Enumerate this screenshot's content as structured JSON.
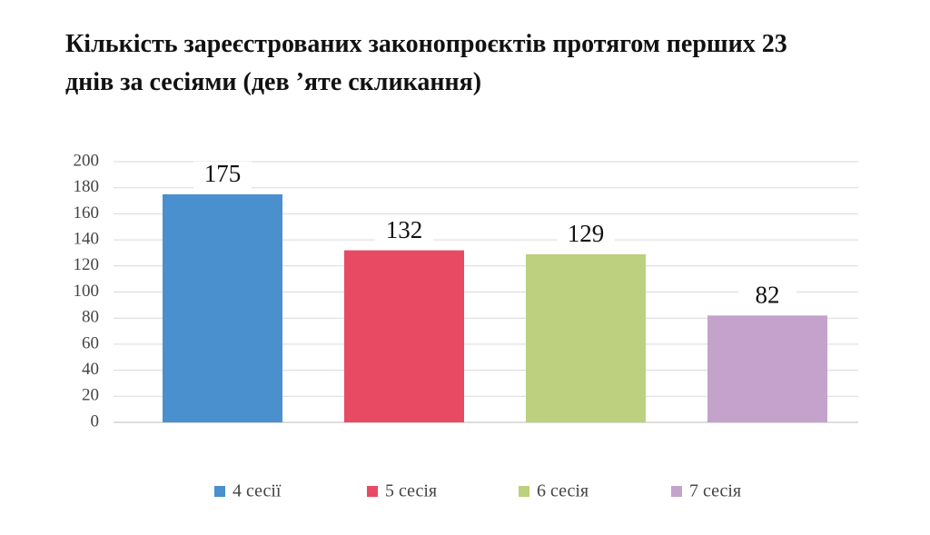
{
  "chart_data": {
    "type": "bar",
    "title": "Кількість зареєстрованих законопроєктів протягом перших 23 днів за сесіями (дев ’яте скликання)",
    "categories": [
      null
    ],
    "series": [
      {
        "name": "4 сесії",
        "color": "#4a90cf",
        "values": [
          175
        ]
      },
      {
        "name": "5 сесія",
        "color": "#e84a63",
        "values": [
          132
        ]
      },
      {
        "name": "6 сесія",
        "color": "#bcd080",
        "values": [
          129
        ]
      },
      {
        "name": "7 сесія",
        "color": "#c4a2cb",
        "values": [
          82
        ]
      }
    ],
    "ylim": [
      0,
      200
    ],
    "yticks": [
      0,
      20,
      40,
      60,
      80,
      100,
      120,
      140,
      160,
      180,
      200
    ],
    "grid": true,
    "legend": "bottom"
  }
}
